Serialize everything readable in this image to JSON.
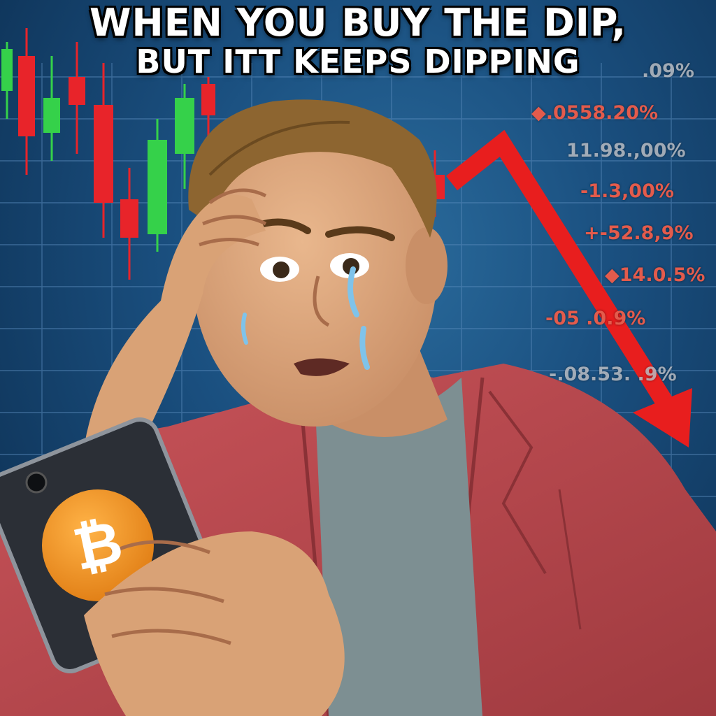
{
  "caption": {
    "line1": "WHEN YOU BUY THE DIP,",
    "line2": "BUT ITT KEEPS DIPPING"
  },
  "ticker_labels": [
    ".09%",
    "◆.0558.20%",
    "11.98.,00%",
    "-1.3,00%",
    "+-52.8,9%",
    "◆14.0.5%",
    "-05 .0.9%",
    "-.08.53. .9%"
  ],
  "phone": {
    "logo": "₿",
    "logo_color": "#f19a2c"
  },
  "colors": {
    "background": "#1a4f7f",
    "candle_up": "#35d14a",
    "candle_down": "#e8242a",
    "trend_arrow": "#e81e1e",
    "jacket": "#b8474b",
    "shirt": "#7d8f92",
    "hair": "#8d6530",
    "skin": "#dcaa80"
  }
}
